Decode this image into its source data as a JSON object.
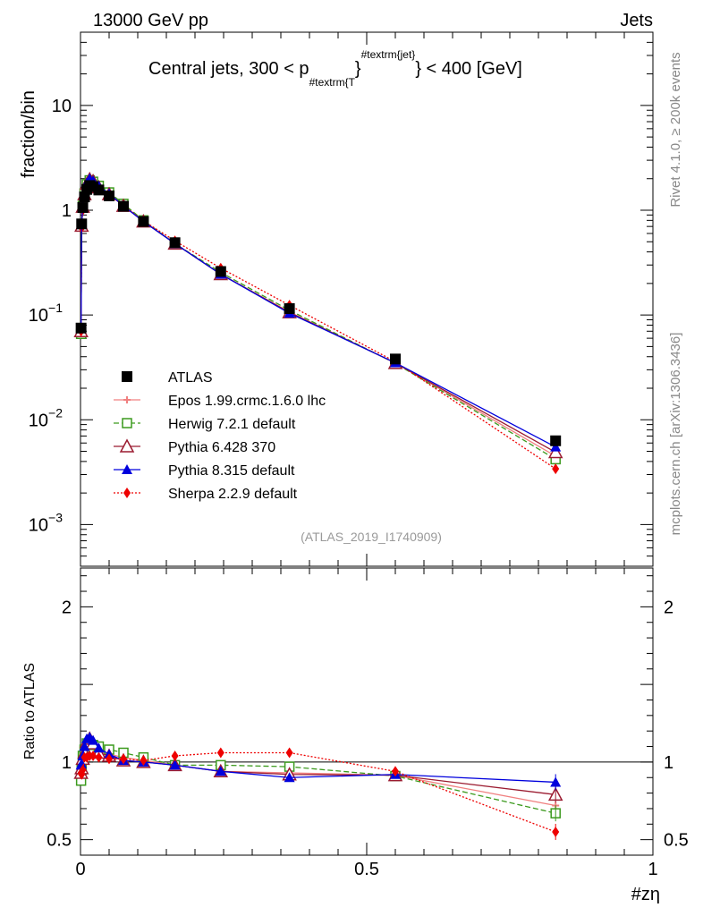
{
  "header": {
    "left": "13000 GeV pp",
    "right": "Jets"
  },
  "side_labels": {
    "rivet": "Rivet 4.1.0, ≥ 200k events",
    "mcplots": "mcplots.cern.ch [arXiv:1306.3436]"
  },
  "chart_data": {
    "type": "line",
    "title_parts": {
      "main": "Central jets, 300 < p",
      "sub": "#textrm{T",
      "brace": "}",
      "sup": "#textrm{jet}",
      "rest": "} < 400 [GeV]"
    },
    "analysis_label": "(ATLAS_2019_I1740909)",
    "xlabel": "#zη",
    "ylabel_top": "fraction/bin",
    "ylabel_bottom": "Ratio to ATLAS",
    "xlim": [
      0,
      1
    ],
    "ylim_top": [
      0.0004,
      50
    ],
    "ylim_bottom": [
      0.4,
      2.25
    ],
    "x_ticks": [
      {
        "value": 0,
        "label": "0"
      },
      {
        "value": 0.5,
        "label": "0.5"
      },
      {
        "value": 1,
        "label": "1"
      }
    ],
    "y_ticks_top": [
      {
        "value": 10,
        "label": "10"
      },
      {
        "value": 1,
        "label": "1"
      },
      {
        "value": 0.1,
        "label": "10",
        "exp": "−1"
      },
      {
        "value": 0.01,
        "label": "10",
        "exp": "−2"
      },
      {
        "value": 0.001,
        "label": "10",
        "exp": "−3"
      }
    ],
    "y_ticks_bottom": [
      {
        "value": 2,
        "label": "2"
      },
      {
        "value": 1,
        "label": "1"
      },
      {
        "value": 0.5,
        "label": "0.5"
      }
    ],
    "x": [
      0.001,
      0.002,
      0.004,
      0.007,
      0.011,
      0.016,
      0.022,
      0.032,
      0.05,
      0.075,
      0.11,
      0.165,
      0.245,
      0.365,
      0.55,
      0.83
    ],
    "series": [
      {
        "name": "ATLAS",
        "color": "#000000",
        "marker": "square",
        "line": "none",
        "values": [
          0.075,
          0.74,
          1.06,
          1.34,
          1.58,
          1.72,
          1.68,
          1.56,
          1.37,
          1.09,
          0.78,
          0.49,
          0.26,
          0.115,
          0.038,
          0.0063
        ]
      },
      {
        "name": "Epos 1.99.crmc.1.6.0 lhc",
        "color": "#f08080",
        "marker": "cross",
        "line": "solid",
        "values": [
          0.07,
          0.7,
          1.07,
          1.38,
          1.75,
          1.93,
          1.9,
          1.67,
          1.44,
          1.12,
          0.79,
          0.48,
          0.245,
          0.107,
          0.0348,
          0.0045
        ]
      },
      {
        "name": "Herwig 7.2.1 default",
        "color": "#3c9a1e",
        "marker": "open-square",
        "line": "dashed",
        "values": [
          0.066,
          0.7,
          1.1,
          1.45,
          1.77,
          1.93,
          1.87,
          1.71,
          1.48,
          1.15,
          0.8,
          0.48,
          0.255,
          0.111,
          0.0346,
          0.0042
        ]
      },
      {
        "name": "Pythia 6.428 370",
        "color": "#9b1b30",
        "marker": "open-triangle",
        "line": "solid",
        "values": [
          0.07,
          0.71,
          1.08,
          1.42,
          1.78,
          1.97,
          1.89,
          1.65,
          1.42,
          1.1,
          0.78,
          0.48,
          0.245,
          0.106,
          0.0348,
          0.0049
        ]
      },
      {
        "name": "Pythia 8.315 default",
        "color": "#0000dd",
        "marker": "triangle",
        "line": "solid",
        "values": [
          0.074,
          0.73,
          1.1,
          1.47,
          1.82,
          2.0,
          1.91,
          1.7,
          1.44,
          1.1,
          0.78,
          0.48,
          0.245,
          0.104,
          0.035,
          0.0055
        ]
      },
      {
        "name": "Sherpa 2.2.9 default",
        "color": "#ee0000",
        "marker": "diamond",
        "line": "dotted",
        "values": [
          0.07,
          0.68,
          1.0,
          1.38,
          1.63,
          1.79,
          1.74,
          1.6,
          1.4,
          1.11,
          0.79,
          0.51,
          0.28,
          0.124,
          0.0358,
          0.0034
        ]
      }
    ],
    "ratio_series": [
      {
        "name": "Epos 1.99.crmc.1.6.0 lhc",
        "values": [
          0.93,
          0.95,
          1.01,
          1.03,
          1.11,
          1.12,
          1.13,
          1.07,
          1.05,
          1.03,
          1.01,
          0.98,
          0.94,
          0.93,
          0.915,
          0.72
        ]
      },
      {
        "name": "Herwig 7.2.1 default",
        "values": [
          0.88,
          0.95,
          1.04,
          1.08,
          1.12,
          1.12,
          1.11,
          1.1,
          1.08,
          1.06,
          1.03,
          0.98,
          0.98,
          0.97,
          0.91,
          0.67
        ]
      },
      {
        "name": "Pythia 6.428 370",
        "values": [
          0.93,
          0.96,
          1.02,
          1.06,
          1.13,
          1.15,
          1.12,
          1.06,
          1.04,
          1.01,
          1.0,
          0.98,
          0.94,
          0.92,
          0.915,
          0.79
        ]
      },
      {
        "name": "Pythia 8.315 default",
        "values": [
          0.98,
          0.99,
          1.04,
          1.1,
          1.15,
          1.16,
          1.14,
          1.09,
          1.05,
          1.01,
          1.0,
          0.98,
          0.94,
          0.9,
          0.92,
          0.87
        ]
      },
      {
        "name": "Sherpa 2.2.9 default",
        "values": [
          0.93,
          0.92,
          0.95,
          1.03,
          1.03,
          1.04,
          1.04,
          1.03,
          1.02,
          1.02,
          1.01,
          1.04,
          1.06,
          1.06,
          0.94,
          0.55
        ]
      }
    ]
  }
}
